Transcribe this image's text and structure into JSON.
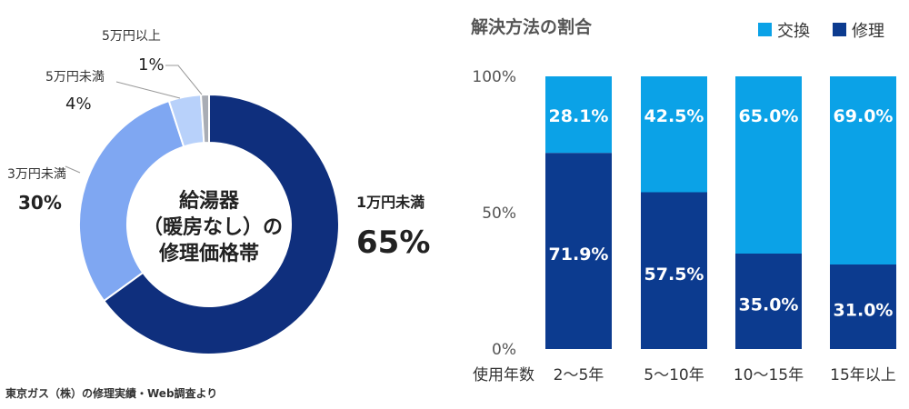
{
  "chart_data": [
    {
      "type": "pie",
      "center_label": [
        "給湯器",
        "（暖房なし）の",
        "修理価格帯"
      ],
      "categories": [
        "1万円未満",
        "3万円未満",
        "5万円未満",
        "5万円以上"
      ],
      "values": [
        65,
        30,
        4,
        1
      ],
      "value_labels": [
        "65%",
        "30%",
        "4%",
        "1%"
      ],
      "colors": [
        "#0f2f7d",
        "#7fa7f2",
        "#b8d1fa",
        "#a9adb5"
      ],
      "source_note": "東京ガス（株）の修理実績・Web調査より"
    },
    {
      "type": "bar",
      "stacked": true,
      "title": "解決方法の割合",
      "xlabel": "使用年数",
      "categories": [
        "2～5年",
        "5～10年",
        "10～15年",
        "15年以上"
      ],
      "series": [
        {
          "name": "修理",
          "values": [
            71.9,
            57.5,
            35.0,
            31.0
          ],
          "labels": [
            "71.9%",
            "57.5%",
            "35.0%",
            "31.0%"
          ],
          "color": "#0c3b8f"
        },
        {
          "name": "交換",
          "values": [
            28.1,
            42.5,
            65.0,
            69.0
          ],
          "labels": [
            "28.1%",
            "42.5%",
            "65.0%",
            "69.0%"
          ],
          "color": "#0ba2e7"
        }
      ],
      "legend_order": [
        "交換",
        "修理"
      ],
      "legend_position": "top-right",
      "ylim": [
        0,
        100
      ],
      "yticks": [
        "0%",
        "50%",
        "100%"
      ]
    }
  ]
}
